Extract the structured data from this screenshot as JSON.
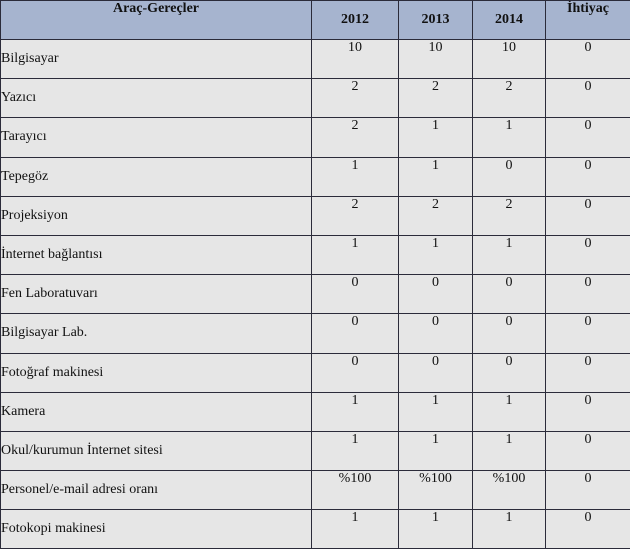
{
  "table": {
    "headers": {
      "item": "Araç-Gereçler",
      "y2012": "2012",
      "y2013": "2013",
      "y2014": "2014",
      "need": "İhtiyaç"
    },
    "rows": [
      {
        "item": "Bilgisayar",
        "y2012": "10",
        "y2013": "10",
        "y2014": "10",
        "need": "0"
      },
      {
        "item": "Yazıcı",
        "y2012": "2",
        "y2013": "2",
        "y2014": "2",
        "need": "0"
      },
      {
        "item": "Tarayıcı",
        "y2012": "2",
        "y2013": "1",
        "y2014": "1",
        "need": "0"
      },
      {
        "item": "Tepegöz",
        "y2012": "1",
        "y2013": "1",
        "y2014": "0",
        "need": "0"
      },
      {
        "item": "Projeksiyon",
        "y2012": "2",
        "y2013": "2",
        "y2014": "2",
        "need": "0"
      },
      {
        "item": "İnternet bağlantısı",
        "y2012": "1",
        "y2013": "1",
        "y2014": "1",
        "need": "0"
      },
      {
        "item": "Fen Laboratuvarı",
        "y2012": "0",
        "y2013": "0",
        "y2014": "0",
        "need": "0"
      },
      {
        "item": "Bilgisayar Lab.",
        "y2012": "0",
        "y2013": "0",
        "y2014": "0",
        "need": "0"
      },
      {
        "item": "Fotoğraf makinesi",
        "y2012": "0",
        "y2013": "0",
        "y2014": "0",
        "need": "0"
      },
      {
        "item": "Kamera",
        "y2012": "1",
        "y2013": "1",
        "y2014": "1",
        "need": "0"
      },
      {
        "item": "Okul/kurumun İnternet sitesi",
        "y2012": "1",
        "y2013": "1",
        "y2014": "1",
        "need": "0"
      },
      {
        "item": "Personel/e-mail adresi oranı",
        "y2012": "%100",
        "y2013": "%100",
        "y2014": "%100",
        "need": "0"
      },
      {
        "item": "Fotokopi makinesi",
        "y2012": "1",
        "y2013": "1",
        "y2014": "1",
        "need": "0"
      }
    ]
  },
  "colors": {
    "header_bg": "#a6b4cf",
    "cell_bg": "#e6e6e6",
    "border": "#2b2b3a"
  }
}
